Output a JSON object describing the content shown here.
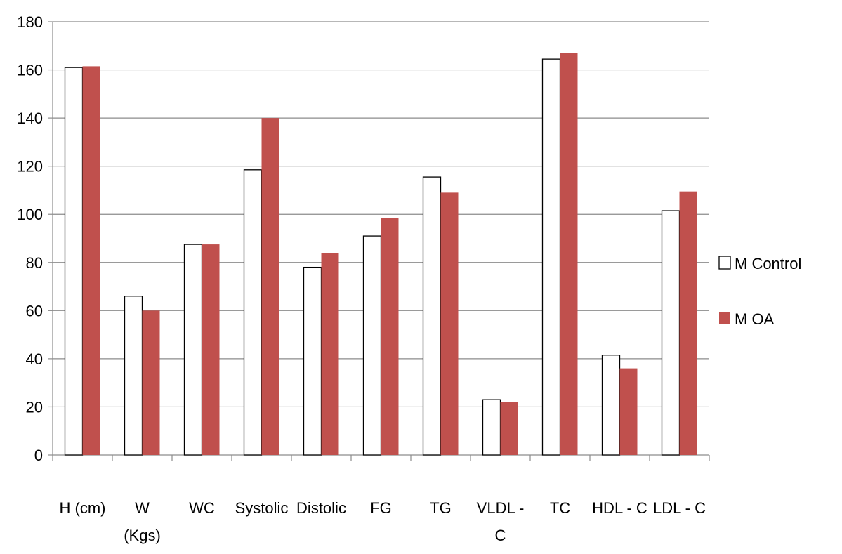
{
  "chart_data": {
    "type": "bar",
    "categories": [
      "H (cm)",
      "W (Kgs)",
      "WC",
      "Systolic",
      "Distolic",
      "FG",
      "TG",
      "VLDL - C",
      "TC",
      "HDL - C",
      "LDL - C"
    ],
    "category_lines": [
      [
        "H (cm)"
      ],
      [
        "W",
        "(Kgs)"
      ],
      [
        "WC"
      ],
      [
        "Systolic"
      ],
      [
        "Distolic"
      ],
      [
        "FG"
      ],
      [
        "TG"
      ],
      [
        "VLDL -",
        "C"
      ],
      [
        "TC"
      ],
      [
        "HDL - C"
      ],
      [
        "LDL - C"
      ]
    ],
    "series": [
      {
        "name": "M Control",
        "color": "#ffffff",
        "stroke": "#000000",
        "values": [
          161,
          66,
          87.5,
          118.5,
          78,
          91,
          115.5,
          23,
          164.5,
          41.5,
          101.5
        ]
      },
      {
        "name": "M OA",
        "color": "#c0504d",
        "stroke": "none",
        "values": [
          161.5,
          60,
          87.5,
          140,
          84,
          98.5,
          109,
          22,
          167,
          36,
          109.5
        ]
      }
    ],
    "ylim": [
      0,
      180
    ],
    "yticks": [
      0,
      20,
      40,
      60,
      80,
      100,
      120,
      140,
      160,
      180
    ],
    "grid": true,
    "legend_position": "right",
    "title": "",
    "xlabel": "",
    "ylabel": ""
  }
}
